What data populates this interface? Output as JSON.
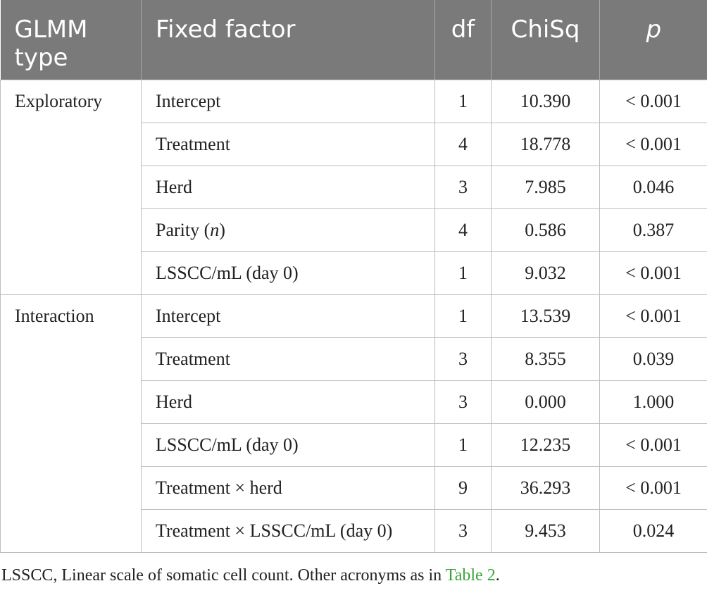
{
  "table": {
    "headers": {
      "glmm_type": "GLMM type",
      "fixed_factor": "Fixed factor",
      "df": "df",
      "chisq": "ChiSq",
      "p": "p"
    },
    "groups": [
      {
        "type": "Exploratory",
        "rows": [
          {
            "factor": "Intercept",
            "factor_italic_part": "",
            "factor_suffix": "",
            "df": "1",
            "chisq": "10.390",
            "p": "< 0.001"
          },
          {
            "factor": "Treatment",
            "factor_italic_part": "",
            "factor_suffix": "",
            "df": "4",
            "chisq": "18.778",
            "p": "< 0.001"
          },
          {
            "factor": "Herd",
            "factor_italic_part": "",
            "factor_suffix": "",
            "df": "3",
            "chisq": "7.985",
            "p": "0.046"
          },
          {
            "factor": "Parity (",
            "factor_italic_part": "n",
            "factor_suffix": ")",
            "df": "4",
            "chisq": "0.586",
            "p": "0.387"
          },
          {
            "factor": "LSSCC/mL (day 0)",
            "factor_italic_part": "",
            "factor_suffix": "",
            "df": "1",
            "chisq": "9.032",
            "p": "< 0.001"
          }
        ]
      },
      {
        "type": "Interaction",
        "rows": [
          {
            "factor": "Intercept",
            "factor_italic_part": "",
            "factor_suffix": "",
            "df": "1",
            "chisq": "13.539",
            "p": "< 0.001"
          },
          {
            "factor": "Treatment",
            "factor_italic_part": "",
            "factor_suffix": "",
            "df": "3",
            "chisq": "8.355",
            "p": "0.039"
          },
          {
            "factor": "Herd",
            "factor_italic_part": "",
            "factor_suffix": "",
            "df": "3",
            "chisq": "0.000",
            "p": "1.000"
          },
          {
            "factor": "LSSCC/mL (day 0)",
            "factor_italic_part": "",
            "factor_suffix": "",
            "df": "1",
            "chisq": "12.235",
            "p": "< 0.001"
          },
          {
            "factor": "Treatment × herd",
            "factor_italic_part": "",
            "factor_suffix": "",
            "df": "9",
            "chisq": "36.293",
            "p": "< 0.001"
          },
          {
            "factor": "Treatment × LSSCC/mL (day 0)",
            "factor_italic_part": "",
            "factor_suffix": "",
            "df": "3",
            "chisq": "9.453",
            "p": "0.024"
          }
        ]
      }
    ]
  },
  "footnote": {
    "text": "LSSCC, Linear scale of somatic cell count. Other acronyms as in ",
    "link_text": "Table 2",
    "end": "."
  },
  "colors": {
    "header_bg": "#7a7a7a",
    "link": "#3aa33a"
  }
}
